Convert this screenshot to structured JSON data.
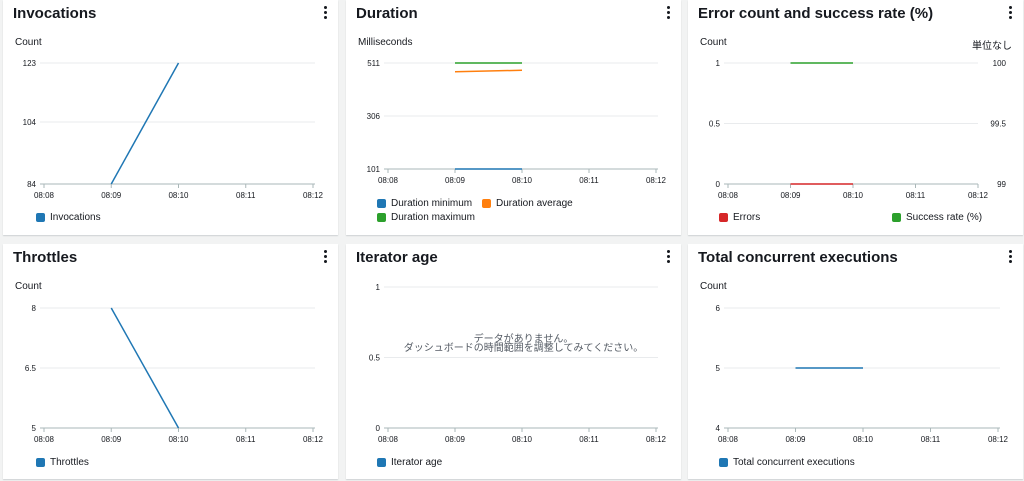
{
  "colors": {
    "blue": "#1f77b4",
    "orange": "#ff7f0e",
    "green": "#2ca02c",
    "red": "#d62728",
    "grid": "#e9ebed",
    "axis": "#aab7b8"
  },
  "panels": {
    "invocations": {
      "title": "Invocations",
      "unit_left": "Count",
      "legend": [
        "Invocations"
      ]
    },
    "duration": {
      "title": "Duration",
      "unit_left": "Milliseconds",
      "legend": [
        "Duration minimum",
        "Duration average",
        "Duration maximum"
      ]
    },
    "errors": {
      "title": "Error count and success rate (%)",
      "unit_left": "Count",
      "unit_right": "単位なし",
      "legend": [
        "Errors",
        "Success rate (%)"
      ]
    },
    "throttles": {
      "title": "Throttles",
      "unit_left": "Count",
      "legend": [
        "Throttles"
      ]
    },
    "iterator": {
      "title": "Iterator age",
      "legend": [
        "Iterator age"
      ],
      "no_data_line1": "データがありません。",
      "no_data_line2": "ダッシュボードの時間範囲を調整してみてください。"
    },
    "concurrent": {
      "title": "Total concurrent executions",
      "unit_left": "Count",
      "legend": [
        "Total concurrent executions"
      ]
    }
  },
  "chart_data": [
    {
      "id": "invocations",
      "type": "line",
      "x": [
        "08:08",
        "08:09",
        "08:10",
        "08:11",
        "08:12"
      ],
      "y_ticks": [
        "84",
        "104",
        "123"
      ],
      "ylim": [
        84,
        123
      ],
      "series": [
        {
          "name": "Invocations",
          "color": "#1f77b4",
          "points": [
            [
              "08:09",
              84
            ],
            [
              "08:10",
              123
            ]
          ]
        }
      ]
    },
    {
      "id": "duration",
      "type": "line",
      "x": [
        "08:08",
        "08:09",
        "08:10",
        "08:11",
        "08:12"
      ],
      "y_ticks": [
        "101",
        "306",
        "511"
      ],
      "ylim": [
        101,
        511
      ],
      "series": [
        {
          "name": "Duration minimum",
          "color": "#1f77b4",
          "points": [
            [
              "08:09",
              101
            ],
            [
              "08:10",
              101
            ]
          ]
        },
        {
          "name": "Duration average",
          "color": "#ff7f0e",
          "points": [
            [
              "08:09",
              477
            ],
            [
              "08:10",
              483
            ]
          ]
        },
        {
          "name": "Duration maximum",
          "color": "#2ca02c",
          "points": [
            [
              "08:09",
              511
            ],
            [
              "08:10",
              511
            ]
          ]
        }
      ]
    },
    {
      "id": "errors",
      "type": "line",
      "x": [
        "08:08",
        "08:09",
        "08:10",
        "08:11",
        "08:12"
      ],
      "y_ticks": [
        "0",
        "0.5",
        "1"
      ],
      "ylim": [
        0,
        1
      ],
      "y2_ticks": [
        "99",
        "99.5",
        "100"
      ],
      "y2lim": [
        99,
        100
      ],
      "series": [
        {
          "name": "Errors",
          "color": "#d62728",
          "axis": "left",
          "points": [
            [
              "08:09",
              0
            ],
            [
              "08:10",
              0
            ]
          ]
        },
        {
          "name": "Success rate (%)",
          "color": "#2ca02c",
          "axis": "right",
          "points": [
            [
              "08:09",
              100
            ],
            [
              "08:10",
              100
            ]
          ]
        }
      ]
    },
    {
      "id": "throttles",
      "type": "line",
      "x": [
        "08:08",
        "08:09",
        "08:10",
        "08:11",
        "08:12"
      ],
      "y_ticks": [
        "5",
        "6.5",
        "8"
      ],
      "ylim": [
        5,
        8
      ],
      "series": [
        {
          "name": "Throttles",
          "color": "#1f77b4",
          "points": [
            [
              "08:09",
              8
            ],
            [
              "08:10",
              5
            ]
          ]
        }
      ]
    },
    {
      "id": "iterator",
      "type": "line",
      "x": [
        "08:08",
        "08:09",
        "08:10",
        "08:11",
        "08:12"
      ],
      "y_ticks": [
        "0",
        "0.5",
        "1"
      ],
      "ylim": [
        0,
        1
      ],
      "series": []
    },
    {
      "id": "concurrent",
      "type": "line",
      "x": [
        "08:08",
        "08:09",
        "08:10",
        "08:11",
        "08:12"
      ],
      "y_ticks": [
        "4",
        "5",
        "6"
      ],
      "ylim": [
        4,
        6
      ],
      "series": [
        {
          "name": "Total concurrent executions",
          "color": "#1f77b4",
          "points": [
            [
              "08:09",
              5
            ],
            [
              "08:10",
              5
            ]
          ]
        }
      ]
    }
  ]
}
